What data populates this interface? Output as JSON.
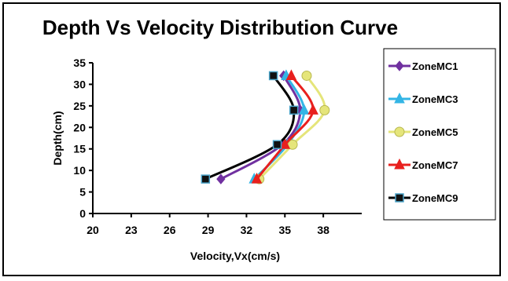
{
  "chart_data": {
    "type": "line",
    "title": "Depth Vs Velocity Distribution Curve",
    "xlabel": "Velocity,Vx(cm/s)",
    "ylabel": "Depth(cm)",
    "xlim": [
      20,
      41
    ],
    "ylim": [
      0,
      35
    ],
    "xticks": [
      20,
      23,
      26,
      29,
      32,
      35,
      38
    ],
    "yticks": [
      0,
      5,
      10,
      15,
      20,
      25,
      30,
      35
    ],
    "grid": false,
    "legend_position": "right",
    "series": [
      {
        "name": "ZoneMC1",
        "color": "#7030A0",
        "marker": "diamond",
        "x": [
          30.0,
          34.8,
          36.2,
          34.9
        ],
        "y": [
          8,
          16,
          24,
          32
        ]
      },
      {
        "name": "ZoneMC3",
        "color": "#33B5E5",
        "marker": "triangle",
        "x": [
          32.6,
          35.2,
          36.5,
          35.1
        ],
        "y": [
          8,
          16,
          24,
          32
        ]
      },
      {
        "name": "ZoneMC5",
        "color": "#E5E57A",
        "marker": "circle",
        "x": [
          33.0,
          35.6,
          38.1,
          36.7
        ],
        "y": [
          8,
          16,
          24,
          32
        ]
      },
      {
        "name": "ZoneMC7",
        "color": "#E8201E",
        "marker": "triangle",
        "x": [
          32.8,
          35.0,
          37.2,
          35.5
        ],
        "y": [
          8,
          16,
          24,
          32
        ]
      },
      {
        "name": "ZoneMC9",
        "color": "#000000",
        "marker": "square",
        "x": [
          28.8,
          34.4,
          35.7,
          34.1
        ],
        "y": [
          8,
          16,
          24,
          32
        ]
      }
    ]
  }
}
